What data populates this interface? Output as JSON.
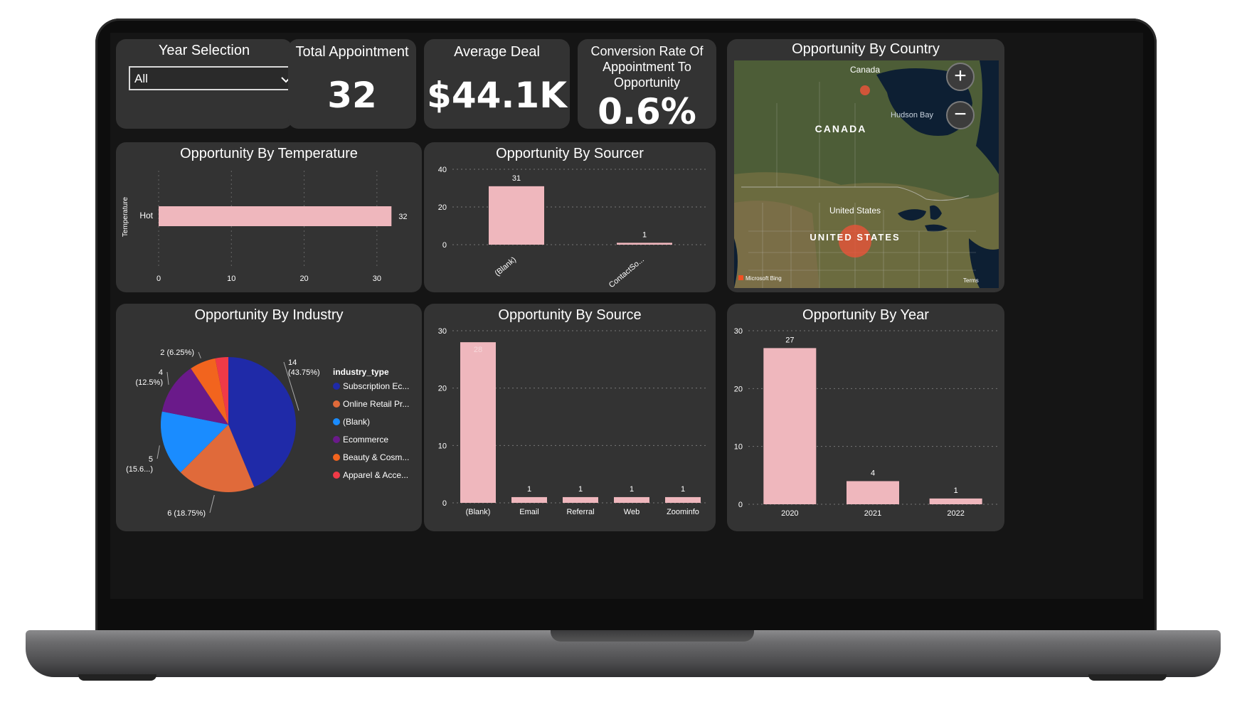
{
  "colors": {
    "bar": "#efb7bd",
    "card": "#333333",
    "screen": "#151515",
    "text": "#ffffff"
  },
  "year_selection": {
    "title": "Year Selection",
    "value": "All"
  },
  "kpis": {
    "total_appointment": {
      "title": "Total Appointment",
      "value": "32"
    },
    "average_deal": {
      "title": "Average Deal",
      "value": "$44.1K"
    },
    "conversion_rate": {
      "title": "Conversion Rate Of Appointment To Opportunity",
      "value": "0.6%"
    }
  },
  "map": {
    "title": "Opportunity By Country",
    "labels": {
      "canada_small": "Canada",
      "canada_large": "CANADA",
      "hudson": "Hudson Bay",
      "us_small": "United States",
      "us_large": "UNITED STATES",
      "brand": "Microsoft Bing",
      "terms": "Terms"
    },
    "zoom_in": "+",
    "zoom_out": "−"
  },
  "chart_data": [
    {
      "id": "temperature",
      "type": "bar",
      "orientation": "horizontal",
      "title": "Opportunity By Temperature",
      "ylabel": "Temperature",
      "xlabel": "",
      "categories": [
        "Hot"
      ],
      "values": [
        32
      ],
      "xlim": [
        0,
        35
      ],
      "ticks": [
        0,
        10,
        20,
        30
      ]
    },
    {
      "id": "sourcer",
      "type": "bar",
      "title": "Opportunity By Sourcer",
      "categories": [
        "(Blank)",
        "ContactSo..."
      ],
      "values": [
        31,
        1
      ],
      "ylim": [
        0,
        40
      ],
      "ticks": [
        0,
        20,
        40
      ]
    },
    {
      "id": "industry",
      "type": "pie",
      "title": "Opportunity By Industry",
      "legend_title": "industry_type",
      "slices": [
        {
          "name": "Subscription Ec...",
          "value": 14,
          "label": "14",
          "pct": "(43.75%)",
          "color": "#1f2aa8"
        },
        {
          "name": "Online Retail Pr...",
          "value": 6,
          "label": "6 (18.75%)",
          "pct": "",
          "color": "#e06a3a"
        },
        {
          "name": "(Blank)",
          "value": 5,
          "label": "5",
          "pct": "(15.6...)",
          "color": "#1a8cff"
        },
        {
          "name": "Ecommerce",
          "value": 4,
          "label": "4",
          "pct": "(12.5%)",
          "color": "#6a1a8a"
        },
        {
          "name": "Beauty & Cosm...",
          "value": 2,
          "label": "2 (6.25%)",
          "pct": "",
          "color": "#f2641e"
        },
        {
          "name": "Apparel & Acce...",
          "value": 1,
          "label": "",
          "pct": "",
          "color": "#f03a47"
        }
      ]
    },
    {
      "id": "source",
      "type": "bar",
      "title": "Opportunity By Source",
      "categories": [
        "(Blank)",
        "Email",
        "Referral",
        "Web",
        "Zoominfo"
      ],
      "values": [
        28,
        1,
        1,
        1,
        1
      ],
      "ylim": [
        0,
        30
      ],
      "ticks": [
        0,
        10,
        20,
        30
      ]
    },
    {
      "id": "year",
      "type": "bar",
      "title": "Opportunity By Year",
      "categories": [
        "2020",
        "2021",
        "2022"
      ],
      "values": [
        27,
        4,
        1
      ],
      "ylim": [
        0,
        30
      ],
      "ticks": [
        0,
        10,
        20,
        30
      ]
    }
  ]
}
